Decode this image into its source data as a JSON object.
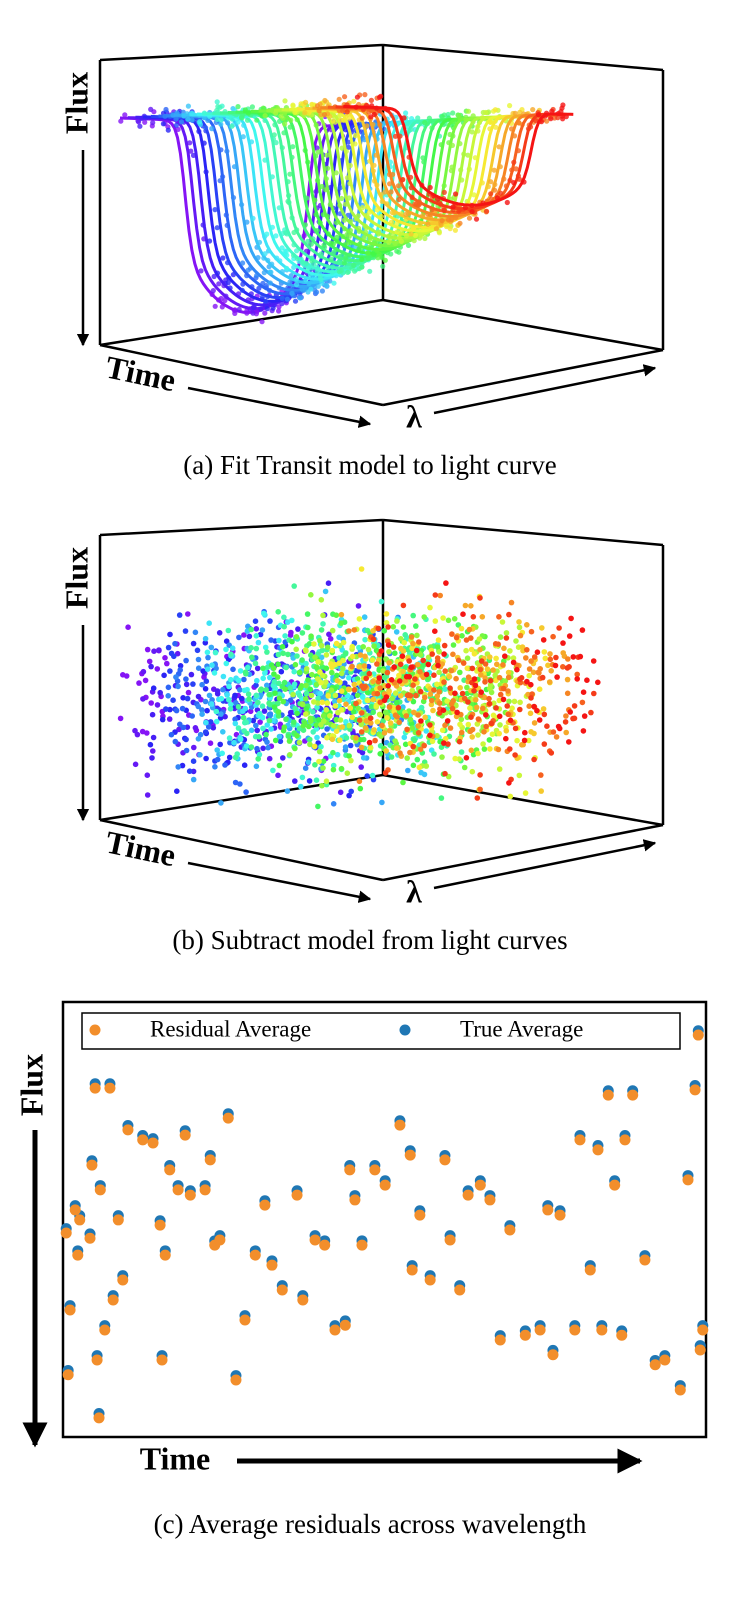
{
  "figures": [
    {
      "caption": "(a) Fit Transit model to light curve",
      "y_label": "Flux",
      "x_label": "Time",
      "z_label": "λ"
    },
    {
      "caption": "(b) Subtract model from light curves",
      "y_label": "Flux",
      "x_label": "Time",
      "z_label": "λ"
    }
  ],
  "chart_data": {
    "type": "scatter",
    "caption": "(c) Average residuals across wavelength",
    "xlabel": "Time",
    "ylabel": "Flux",
    "legend": "upper center",
    "xlim": [
      0,
      100
    ],
    "ylim": [
      0,
      100
    ],
    "x": [
      0.5,
      1.1,
      0.8,
      1.9,
      2.6,
      2.3,
      4.2,
      5.0,
      7.3,
      4.5,
      5.8,
      6.5,
      5.3,
      5.6,
      8.6,
      7.8,
      9.3,
      10.1,
      12.4,
      14.0,
      15.1,
      15.9,
      15.4,
      16.6,
      17.9,
      19.0,
      19.8,
      22.1,
      22.9,
      25.7,
      23.6,
      24.4,
      26.9,
      28.3,
      29.9,
      31.4,
      32.5,
      34.1,
      36.4,
      37.3,
      39.2,
      40.7,
      42.3,
      43.9,
      44.6,
      45.4,
      46.5,
      48.5,
      50.1,
      52.4,
      54.0,
      54.3,
      55.5,
      57.1,
      59.4,
      60.2,
      61.7,
      63.0,
      64.9,
      66.4,
      68.0,
      69.5,
      71.9,
      74.2,
      75.4,
      76.2,
      77.3,
      79.6,
      80.4,
      82.0,
      83.2,
      83.8,
      84.8,
      85.8,
      87.4,
      88.6,
      86.9,
      90.5,
      92.1,
      93.6,
      96.0,
      97.2,
      98.3,
      98.8,
      99.1,
      99.5
    ],
    "series": [
      {
        "name": "Residual Average",
        "color": "#f28e2b",
        "values": [
          46.9,
          29.2,
          14.3,
          52.2,
          49.9,
          41.8,
          45.7,
          80.2,
          80.2,
          62.5,
          56.8,
          24.6,
          17.7,
          4.4,
          49.9,
          31.5,
          36.1,
          70.6,
          68.3,
          67.6,
          48.7,
          41.8,
          17.7,
          61.4,
          56.8,
          69.4,
          55.6,
          56.8,
          63.7,
          73.3,
          44.1,
          45.3,
          13.1,
          26.9,
          41.8,
          53.3,
          39.5,
          33.8,
          55.6,
          31.5,
          45.3,
          44.1,
          24.6,
          25.7,
          61.4,
          54.5,
          44.1,
          61.4,
          57.9,
          71.7,
          64.8,
          38.4,
          51.0,
          36.1,
          63.7,
          45.3,
          33.8,
          55.6,
          57.9,
          54.5,
          22.3,
          47.6,
          23.4,
          24.6,
          52.2,
          18.9,
          51.0,
          24.6,
          68.3,
          38.4,
          66.0,
          24.6,
          78.6,
          57.9,
          68.3,
          78.6,
          23.4,
          40.7,
          16.6,
          17.7,
          10.8,
          59.1,
          79.8,
          92.4,
          20.0,
          24.6
        ]
      },
      {
        "name": "True Average",
        "color": "#1f77b4",
        "values": [
          47.9,
          30.2,
          15.3,
          53.2,
          50.9,
          42.8,
          46.7,
          81.2,
          81.2,
          63.5,
          57.8,
          25.6,
          18.7,
          5.4,
          50.9,
          32.5,
          37.1,
          71.6,
          69.3,
          68.6,
          49.7,
          42.8,
          18.7,
          62.4,
          57.8,
          70.4,
          56.6,
          57.8,
          64.7,
          74.3,
          45.1,
          46.3,
          14.1,
          27.9,
          42.8,
          54.3,
          40.5,
          34.8,
          56.6,
          32.5,
          46.3,
          45.1,
          25.6,
          26.7,
          62.4,
          55.5,
          45.1,
          62.4,
          58.9,
          72.7,
          65.8,
          39.4,
          52.0,
          37.1,
          64.7,
          46.3,
          34.8,
          56.6,
          58.9,
          55.5,
          23.3,
          48.6,
          24.4,
          25.6,
          53.2,
          19.9,
          52.0,
          25.6,
          69.3,
          39.4,
          67.0,
          25.6,
          79.6,
          58.9,
          69.3,
          79.6,
          24.4,
          41.7,
          17.6,
          18.7,
          11.8,
          60.1,
          80.8,
          93.4,
          21.0,
          25.6
        ]
      }
    ]
  }
}
